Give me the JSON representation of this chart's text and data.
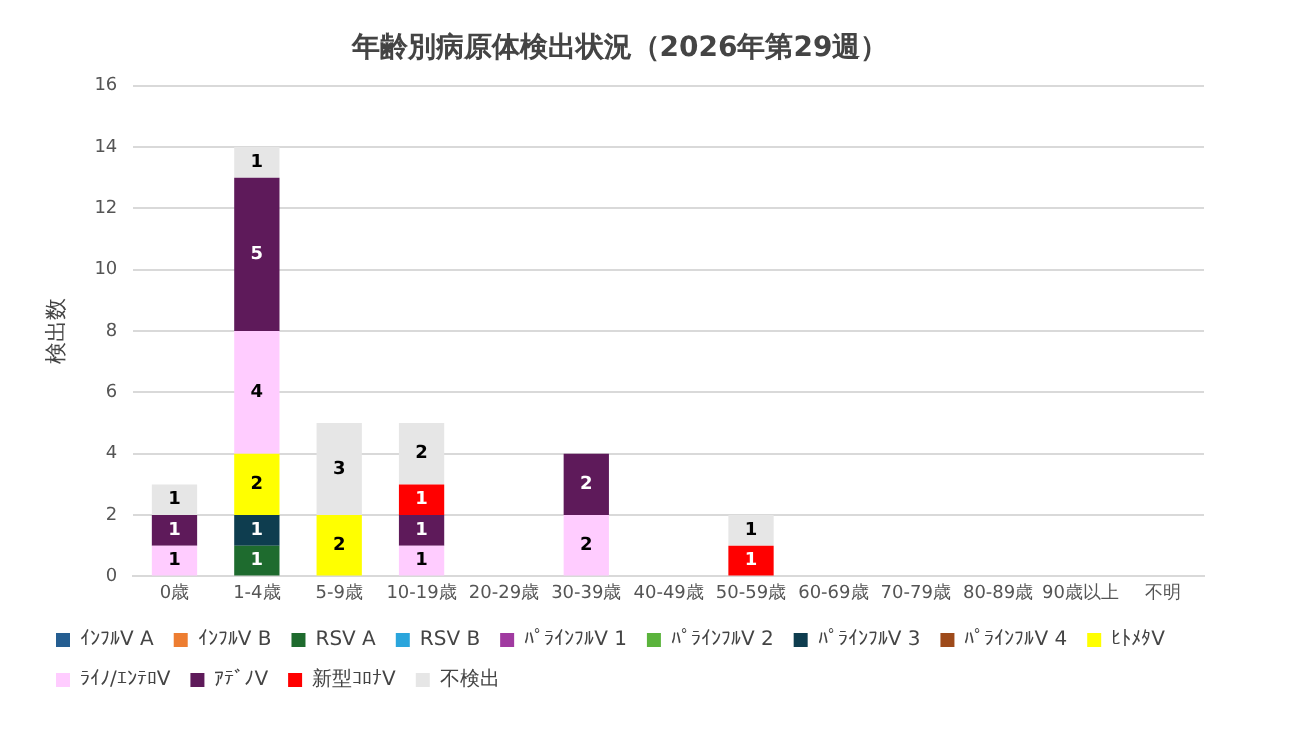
{
  "chart_data": {
    "type": "bar",
    "title": "年齢別病原体検出状況（2026年第29週）",
    "ylabel": "検出数",
    "categories": [
      "0歳",
      "1-4歳",
      "5-9歳",
      "10-19歳",
      "20-29歳",
      "30-39歳",
      "40-49歳",
      "50-59歳",
      "60-69歳",
      "70-79歳",
      "80-89歳",
      "90歳以上",
      "不明"
    ],
    "stacked": true,
    "ylim": [
      0,
      16
    ],
    "yticks": [
      0,
      2,
      4,
      6,
      8,
      10,
      12,
      14,
      16
    ],
    "grid": "y",
    "legend": "bottom",
    "data_labels": true,
    "series": [
      {
        "name": "ｲﾝﾌﾙV A",
        "color": "#255e91",
        "values": [
          null,
          null,
          null,
          null,
          null,
          null,
          null,
          null,
          null,
          null,
          null,
          null,
          null
        ]
      },
      {
        "name": "ｲﾝﾌﾙV B",
        "color": "#ed7d31",
        "values": [
          null,
          null,
          null,
          null,
          null,
          null,
          null,
          null,
          null,
          null,
          null,
          null,
          null
        ]
      },
      {
        "name": "RSV A",
        "color": "#1e6b2e",
        "values": [
          null,
          1,
          null,
          null,
          null,
          null,
          null,
          null,
          null,
          null,
          null,
          null,
          null
        ]
      },
      {
        "name": "RSV B",
        "color": "#2aa5dc",
        "values": [
          null,
          null,
          null,
          null,
          null,
          null,
          null,
          null,
          null,
          null,
          null,
          null,
          null
        ]
      },
      {
        "name": "ﾊﾟﾗｲﾝﾌﾙV 1",
        "color": "#a03aa0",
        "values": [
          null,
          null,
          null,
          null,
          null,
          null,
          null,
          null,
          null,
          null,
          null,
          null,
          null
        ]
      },
      {
        "name": "ﾊﾟﾗｲﾝﾌﾙV 2",
        "color": "#5bb33c",
        "values": [
          null,
          null,
          null,
          null,
          null,
          null,
          null,
          null,
          null,
          null,
          null,
          null,
          null
        ]
      },
      {
        "name": "ﾊﾟﾗｲﾝﾌﾙV 3",
        "color": "#0e3d4f",
        "values": [
          null,
          1,
          null,
          null,
          null,
          null,
          null,
          null,
          null,
          null,
          null,
          null,
          null
        ]
      },
      {
        "name": "ﾊﾟﾗｲﾝﾌﾙV 4",
        "color": "#9e4a1a",
        "values": [
          null,
          null,
          null,
          null,
          null,
          null,
          null,
          null,
          null,
          null,
          null,
          null,
          null
        ]
      },
      {
        "name": "ﾋﾄﾒﾀV",
        "color": "#ffff00",
        "values": [
          null,
          2,
          2,
          null,
          null,
          null,
          null,
          null,
          null,
          null,
          null,
          null,
          null
        ]
      },
      {
        "name": "ﾗｲﾉ/ｴﾝﾃﾛV",
        "color": "#ffccff",
        "values": [
          1,
          4,
          null,
          1,
          null,
          2,
          null,
          null,
          null,
          null,
          null,
          null,
          null
        ]
      },
      {
        "name": "ｱﾃﾞﾉV",
        "color": "#5e1a5a",
        "values": [
          1,
          5,
          null,
          1,
          null,
          2,
          null,
          null,
          null,
          null,
          null,
          null,
          null
        ]
      },
      {
        "name": "新型ｺﾛﾅV",
        "color": "#ff0000",
        "values": [
          null,
          null,
          null,
          1,
          null,
          null,
          null,
          1,
          null,
          null,
          null,
          null,
          null
        ]
      },
      {
        "name": "不検出",
        "color": "#e6e6e6",
        "values": [
          1,
          1,
          3,
          2,
          null,
          null,
          null,
          1,
          null,
          null,
          null,
          null,
          null
        ]
      }
    ]
  }
}
